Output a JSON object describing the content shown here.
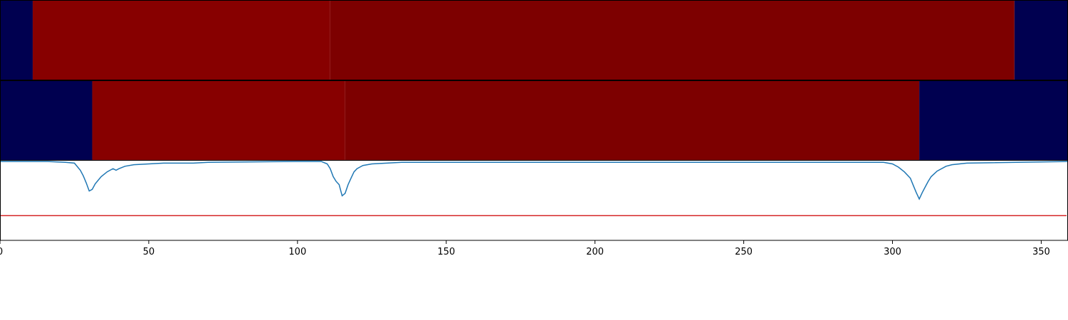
{
  "chart_data": [
    {
      "type": "heatmap",
      "panel": "top",
      "xlim": [
        0,
        359
      ],
      "colors": {
        "low": "#000050",
        "mid": "#870000",
        "high": "#7d0000"
      },
      "segments": [
        {
          "start": 0,
          "end": 11,
          "level": "low"
        },
        {
          "start": 11,
          "end": 111,
          "level": "mid"
        },
        {
          "start": 111,
          "end": 341,
          "level": "high"
        },
        {
          "start": 341,
          "end": 359,
          "level": "low"
        }
      ]
    },
    {
      "type": "heatmap",
      "panel": "middle",
      "xlim": [
        0,
        359
      ],
      "colors": {
        "low": "#000050",
        "mid": "#870000",
        "high": "#7d0000"
      },
      "segments": [
        {
          "start": 0,
          "end": 31,
          "level": "low"
        },
        {
          "start": 31,
          "end": 116,
          "level": "mid"
        },
        {
          "start": 116,
          "end": 309,
          "level": "high"
        },
        {
          "start": 309,
          "end": 359,
          "level": "low"
        }
      ]
    },
    {
      "type": "line",
      "panel": "bottom",
      "xlim": [
        0,
        359
      ],
      "ylim": [
        0,
        1
      ],
      "xticks": [
        0,
        50,
        100,
        150,
        200,
        250,
        300,
        350
      ],
      "threshold": {
        "value": 0.31,
        "color": "#d62728"
      },
      "series": [
        {
          "color": "#1f77b4",
          "x": [
            0,
            10,
            16,
            22,
            25,
            27,
            28,
            29,
            30,
            31,
            32,
            34,
            36,
            37,
            38,
            39,
            40,
            42,
            45,
            50,
            55,
            60,
            65,
            70,
            100,
            108,
            110,
            111,
            112,
            113,
            114,
            115,
            116,
            117,
            118,
            119,
            120,
            122,
            125,
            130,
            135,
            150,
            200,
            250,
            290,
            297,
            300,
            302,
            304,
            306,
            307,
            308,
            309,
            310,
            311,
            312,
            313,
            315,
            318,
            320,
            325,
            359
          ],
          "y": [
            0.99,
            0.99,
            0.99,
            0.98,
            0.97,
            0.88,
            0.81,
            0.72,
            0.62,
            0.64,
            0.71,
            0.8,
            0.86,
            0.88,
            0.9,
            0.88,
            0.9,
            0.93,
            0.95,
            0.96,
            0.97,
            0.97,
            0.97,
            0.98,
            0.99,
            0.99,
            0.96,
            0.9,
            0.8,
            0.74,
            0.7,
            0.56,
            0.59,
            0.7,
            0.78,
            0.86,
            0.9,
            0.94,
            0.96,
            0.97,
            0.98,
            0.98,
            0.98,
            0.98,
            0.98,
            0.98,
            0.96,
            0.92,
            0.86,
            0.78,
            0.69,
            0.6,
            0.52,
            0.6,
            0.67,
            0.74,
            0.8,
            0.87,
            0.93,
            0.95,
            0.97,
            0.99
          ]
        }
      ]
    }
  ]
}
